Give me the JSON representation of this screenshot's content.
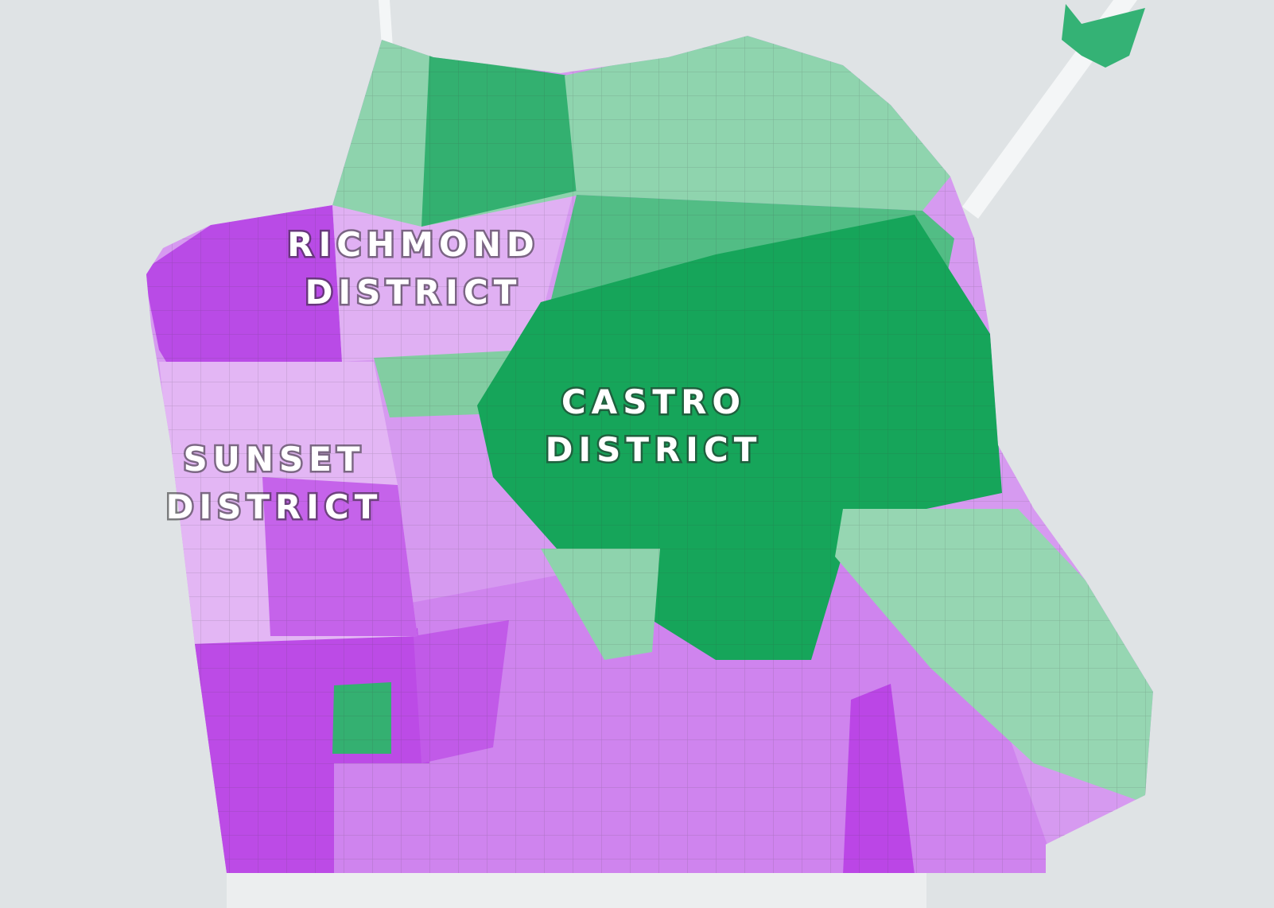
{
  "labels": [
    {
      "lines": [
        "RICHMOND",
        "DISTRICT"
      ]
    },
    {
      "lines": [
        "CASTRO",
        "DISTRICT"
      ]
    },
    {
      "lines": [
        "SUNSET",
        "DISTRICT"
      ]
    }
  ]
}
